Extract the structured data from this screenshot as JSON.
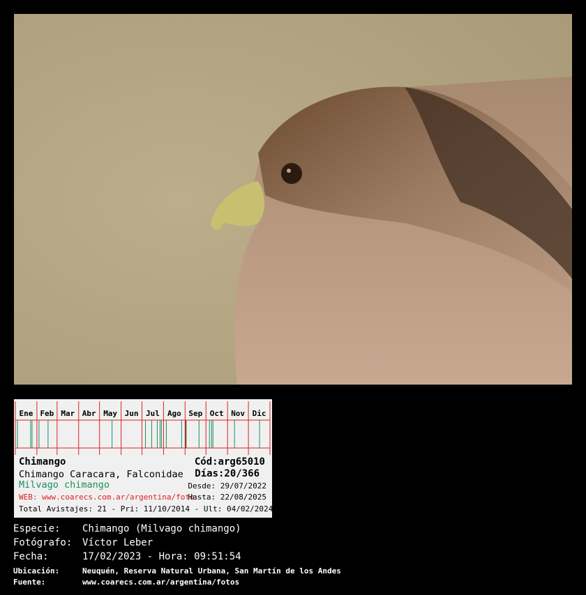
{
  "photo": {
    "subject": "Chimango",
    "background_color": "#b9aa86"
  },
  "calendar": {
    "months": [
      "Ene",
      "Feb",
      "Mar",
      "Abr",
      "May",
      "Jun",
      "Jul",
      "Ago",
      "Sep",
      "Oct",
      "Nov",
      "Dic"
    ],
    "sighting_days": [
      3,
      22,
      24,
      34,
      47,
      139,
      187,
      196,
      204,
      208,
      210,
      217,
      239,
      264,
      279,
      282,
      284,
      315,
      351
    ],
    "highlight_day": 245,
    "colors": {
      "grid": "#e02020",
      "sighting": "#1a9060",
      "highlight": "#7a4a2a"
    }
  },
  "card": {
    "name": "Chimango",
    "code": "Cód:arg65010",
    "english": "Chimango Caracara, Falconidae",
    "days": "Días:20/366",
    "scientific": "Milvago chimango",
    "desde": "Desde: 29/07/2022",
    "web": "WEB: www.coarecs.com.ar/argentina/foto",
    "hasta": "Hasta: 22/08/2025",
    "totals": "Total Avistajes: 21 - Pri: 11/10/2014 - Ult: 04/02/2024"
  },
  "info": {
    "especie_label": "Especie:",
    "especie": "Chimango (Milvago chimango)",
    "fotografo_label": "Fotógrafo:",
    "fotografo": "Víctor Leber",
    "fecha_label": "Fecha:",
    "fecha": "17/02/2023 - Hora: 09:51:54",
    "ubicacion_label": "Ubicación:",
    "ubicacion": "Neuquén, Reserva Natural Urbana, San Martín de los Andes",
    "fuente_label": "Fuente:",
    "fuente": "www.coarecs.com.ar/argentina/fotos"
  }
}
